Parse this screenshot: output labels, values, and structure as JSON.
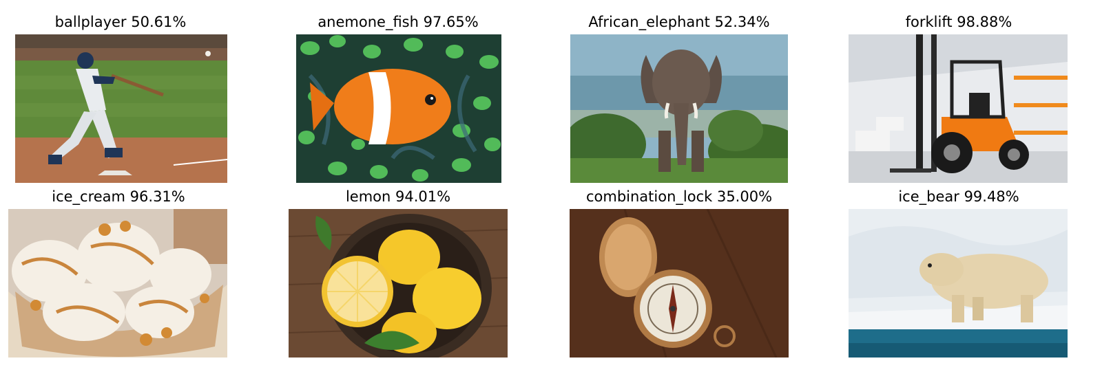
{
  "figure": {
    "panels": [
      {
        "label": "ballplayer",
        "confidence": "50.61%",
        "title": "ballplayer 50.61%"
      },
      {
        "label": "anemone_fish",
        "confidence": "97.65%",
        "title": "anemone_fish 97.65%"
      },
      {
        "label": "African_elephant",
        "confidence": "52.34%",
        "title": "African_elephant 52.34%"
      },
      {
        "label": "forklift",
        "confidence": "98.88%",
        "title": "forklift 98.88%"
      },
      {
        "label": "ice_cream",
        "confidence": "96.31%",
        "title": "ice_cream 96.31%"
      },
      {
        "label": "lemon",
        "confidence": "94.01%",
        "title": "lemon 94.01%"
      },
      {
        "label": "combination_lock",
        "confidence": "35.00%",
        "title": "combination_lock 35.00%"
      },
      {
        "label": "ice_bear",
        "confidence": "99.48%",
        "title": "ice_bear 99.48%"
      }
    ]
  },
  "icons": [
    "baseball-player-photo",
    "clownfish-photo",
    "elephant-photo",
    "forklift-photo",
    "ice-cream-photo",
    "lemon-photo",
    "compass-photo",
    "polar-bear-photo"
  ]
}
